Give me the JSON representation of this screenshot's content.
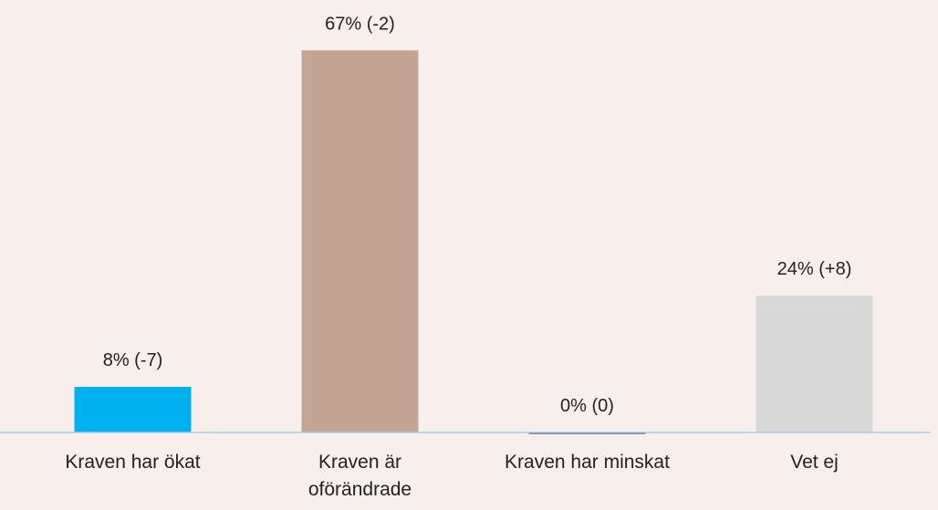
{
  "chart_data": {
    "type": "bar",
    "categories": [
      "Kraven har ökat",
      "Kraven är oförändrade",
      "Kraven har minskat",
      "Vet ej"
    ],
    "values": [
      8,
      67,
      0,
      24
    ],
    "value_labels": [
      "8% (-7)",
      "67% (-2)",
      "0% (0)",
      "24% (+8)"
    ],
    "colors": [
      "#00b0f0",
      "#c4a595",
      "#1f3864",
      "#d9d9d9"
    ],
    "ylim": [
      0,
      70
    ]
  }
}
